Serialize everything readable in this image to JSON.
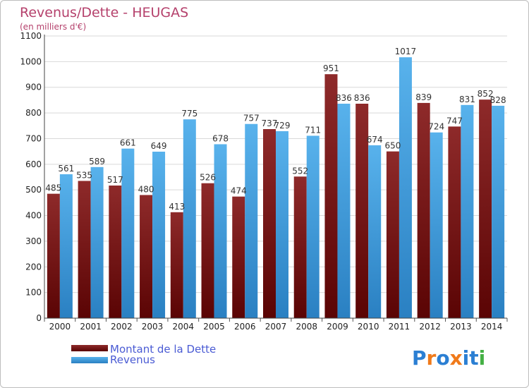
{
  "chart_data": {
    "type": "bar",
    "title": "Revenus/Dette - HEUGAS",
    "subtitle": "(en milliers d'€)",
    "categories": [
      "2000",
      "2001",
      "2002",
      "2003",
      "2004",
      "2005",
      "2006",
      "2007",
      "2008",
      "2009",
      "2010",
      "2011",
      "2012",
      "2013",
      "2014"
    ],
    "series": [
      {
        "name": "Montant de la Dette",
        "color": "#7a1818",
        "values": [
          485,
          535,
          517,
          480,
          413,
          526,
          474,
          737,
          552,
          951,
          836,
          650,
          839,
          747,
          852
        ]
      },
      {
        "name": "Revenus",
        "color": "#3f9ad8",
        "values": [
          561,
          589,
          661,
          649,
          775,
          678,
          757,
          729,
          711,
          836,
          674,
          1017,
          724,
          831,
          828
        ]
      }
    ],
    "ylim": [
      0,
      1100
    ],
    "yticks": [
      0,
      100,
      200,
      300,
      400,
      500,
      600,
      700,
      800,
      900,
      1000,
      1100
    ],
    "grid": true,
    "legend_position": "bottom-left"
  },
  "brand": {
    "letters": [
      {
        "ch": "P",
        "color": "#2b7fd3"
      },
      {
        "ch": "r",
        "color": "#f07a1a"
      },
      {
        "ch": "o",
        "color": "#2b7fd3"
      },
      {
        "ch": "x",
        "color": "#f07a1a"
      },
      {
        "ch": "i",
        "color": "#2b7fd3"
      },
      {
        "ch": "t",
        "color": "#2b7fd3"
      },
      {
        "ch": "i",
        "color": "#44b044"
      }
    ]
  }
}
